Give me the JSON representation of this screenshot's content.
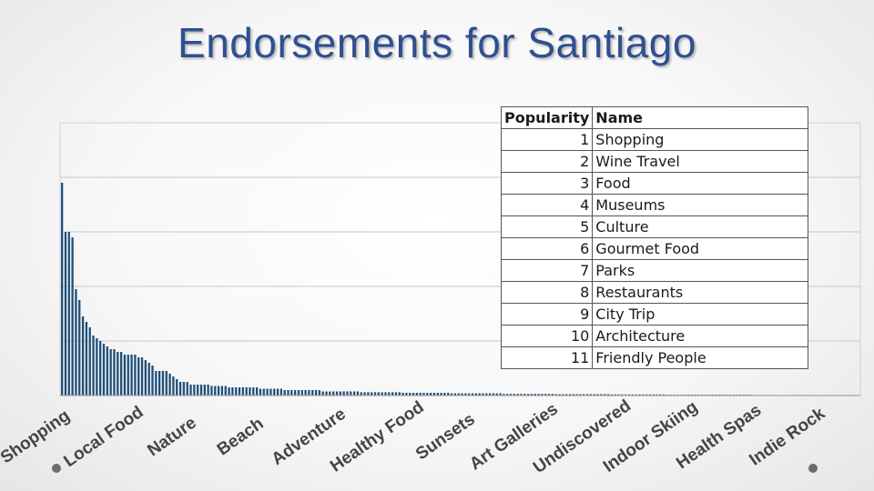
{
  "title": "Endorsements for Santiago",
  "table": {
    "headers": [
      "Popularity",
      "Name"
    ],
    "rows": [
      [
        1,
        "Shopping"
      ],
      [
        2,
        "Wine Travel"
      ],
      [
        3,
        "Food"
      ],
      [
        4,
        "Museums"
      ],
      [
        5,
        "Culture"
      ],
      [
        6,
        "Gourmet Food"
      ],
      [
        7,
        "Parks"
      ],
      [
        8,
        "Restaurants"
      ],
      [
        9,
        "City Trip"
      ],
      [
        10,
        "Architecture"
      ],
      [
        11,
        "Friendly People"
      ]
    ]
  },
  "chart_data": {
    "type": "bar",
    "color": "#1f4e79",
    "grid": true,
    "ylim": [
      0,
      100
    ],
    "values": [
      78,
      60,
      60,
      58,
      39,
      35,
      29,
      27,
      25,
      22,
      21,
      20,
      19,
      18,
      17,
      17,
      16,
      16,
      15,
      15,
      15,
      15,
      14,
      14,
      13,
      12,
      11,
      9,
      9,
      9,
      9,
      8,
      7,
      6,
      5,
      5,
      5,
      4,
      4,
      4,
      4,
      4,
      4,
      3.5,
      3.5,
      3.5,
      3.5,
      3.5,
      3,
      3,
      3,
      3,
      3,
      3,
      3,
      3,
      3,
      2.5,
      2.5,
      2.5,
      2.5,
      2.5,
      2.5,
      2.5,
      2,
      2,
      2,
      2,
      2,
      2,
      2,
      2,
      2,
      2,
      2,
      1.5,
      1.5,
      1.5,
      1.5,
      1.5,
      1.5,
      1.5,
      1.5,
      1.5,
      1.5,
      1.5,
      1.2,
      1.2,
      1.2,
      1.2,
      1.2,
      1.2,
      1.2,
      1.2,
      1.2,
      1.2,
      1.2,
      1.2,
      1,
      1,
      1,
      1,
      1,
      1,
      1,
      1,
      1,
      1,
      1,
      1,
      1,
      1,
      0.8,
      0.8,
      0.8,
      0.8,
      0.8,
      0.8,
      0.8,
      0.8,
      0.8,
      0.8,
      0.8,
      0.8,
      0.8,
      0.8,
      0.8,
      0.6,
      0.6,
      0.6,
      0.6,
      0.6,
      0.6,
      0.6,
      0.6,
      0.6,
      0.6,
      0.6,
      0.6,
      0.6,
      0.6,
      0.6,
      0.5,
      0.5,
      0.5,
      0.5,
      0.5,
      0.5,
      0.5,
      0.5,
      0.5,
      0.5,
      0.5,
      0.5,
      0.5,
      0.5,
      0.5,
      0.5,
      0.4,
      0.4,
      0.4,
      0.4,
      0.4,
      0.4,
      0.4,
      0.4,
      0.4,
      0.4,
      0.4,
      0.4,
      0.4,
      0.4,
      0.4,
      0.4,
      0.3,
      0.3,
      0.3,
      0.3,
      0.3,
      0.3,
      0.3,
      0.3,
      0.3,
      0.3,
      0.3,
      0.3,
      0.3,
      0.3,
      0.3,
      0.3,
      0.3,
      0.3,
      0.3,
      0.3,
      0.3,
      0.3,
      0.3,
      0.3,
      0.3,
      0.2,
      0.2,
      0.2,
      0.2,
      0.2,
      0.2,
      0.2,
      0.2,
      0.2,
      0.2,
      0.2,
      0.2,
      0.2,
      0.2,
      0.2,
      0.2,
      0.2,
      0.2,
      0.2,
      0.2,
      0.2,
      0.2,
      0.2,
      0.2,
      0.2,
      0.2,
      0.2,
      0.2,
      0.2,
      0.2
    ],
    "category_labels": [
      "Shopping",
      "Local Food",
      "Nature",
      "Beach",
      "Adventure",
      "Healthy Food",
      "Sunsets",
      "Art Galleries",
      "Undiscovered",
      "Indoor Skiing",
      "Health Spas",
      "Indie Rock"
    ]
  }
}
